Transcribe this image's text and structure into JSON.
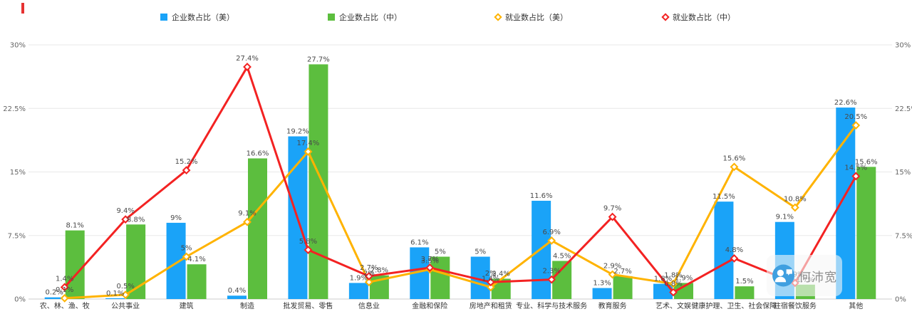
{
  "legend": {
    "items": [
      {
        "key": "us-enterprise",
        "label": "企业数占比（美）",
        "color": "#1aa3f8",
        "marker": "square"
      },
      {
        "key": "cn-enterprise",
        "label": "企业数占比（中）",
        "color": "#5cbe3e",
        "marker": "square"
      },
      {
        "key": "us-employment",
        "label": "就业数占比（美）",
        "color": "#ffb300",
        "marker": "diamond"
      },
      {
        "key": "cn-employment",
        "label": "就业数占比（中）",
        "color": "#f32222",
        "marker": "diamond"
      }
    ]
  },
  "axis": {
    "y_ticks": [
      "0%",
      "7.5%",
      "15%",
      "22.5%",
      "30%"
    ],
    "tick_values": [
      0,
      7.5,
      15,
      22.5,
      30
    ]
  },
  "chart_data": {
    "type": "bar+line",
    "title": "",
    "xlabel": "",
    "ylabel": "",
    "ylim": [
      0,
      30
    ],
    "grid": true,
    "legend_position": "top",
    "categories": [
      "农、林、渔、牧",
      "公共事业",
      "建筑",
      "制造",
      "批发贸易、零售",
      "信息业",
      "金融和保险",
      "房地产和租赁",
      "专业、科学与技术服务",
      "教育服务",
      "艺术、文娱",
      "健康护理、卫生、社会保障",
      "住宿餐饮服务",
      "其他"
    ],
    "series": [
      {
        "key": "us-enterprise",
        "name": "企业数占比（美）",
        "type": "bar",
        "color": "#1aa3f8",
        "values": [
          0.2,
          0.1,
          9,
          0.4,
          19.2,
          1.9,
          6.1,
          5,
          11.6,
          1.3,
          1.8,
          11.5,
          9.1,
          22.6
        ]
      },
      {
        "key": "cn-enterprise",
        "name": "企业数占比（中）",
        "type": "bar",
        "color": "#5cbe3e",
        "values": [
          8.1,
          8.8,
          4.1,
          16.6,
          27.7,
          2.8,
          5,
          2.4,
          4.5,
          2.7,
          1.9,
          1.5,
          1.7,
          15.6
        ]
      },
      {
        "key": "us-employment",
        "name": "就业数占比（美）",
        "type": "line",
        "color": "#ffb300",
        "values": [
          0.1,
          0.5,
          5,
          9.1,
          17.4,
          2,
          3.5,
          1.4,
          6.9,
          2.9,
          1.8,
          15.6,
          10.8,
          20.5
        ]
      },
      {
        "key": "cn-employment",
        "name": "就业数占比（中）",
        "type": "line",
        "color": "#f32222",
        "values": [
          1.4,
          9.4,
          15.2,
          27.4,
          5.8,
          2.7,
          3.7,
          2,
          2.3,
          9.7,
          0.8,
          4.8,
          1.9,
          14.5
        ]
      }
    ]
  },
  "watermark": {
    "text": "何沛宽"
  }
}
